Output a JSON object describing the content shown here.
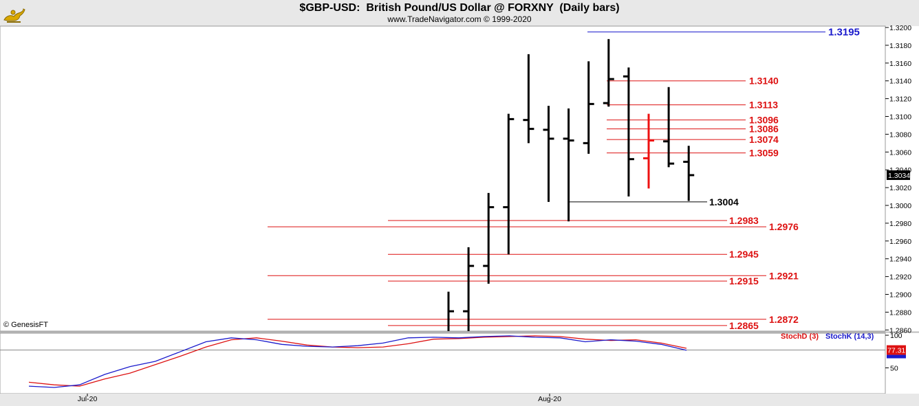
{
  "header": {
    "title": "$GBP-USD:  British Pound/US Dollar @ FORXNY  (Daily bars)",
    "subtitle": "www.TradeNavigator.com © 1999-2020",
    "logo_icon": "genie-lamp-icon"
  },
  "copyright": "© GenesisFT",
  "colors": {
    "background": "#ffffff",
    "bars": "#000000",
    "highlight_bar": "#ee1111",
    "support_resistance": "#dd1111",
    "top_line": "#1a1acc",
    "stoch_d": "#dd1111",
    "stoch_k": "#1a1acc"
  },
  "chart_data": [
    {
      "type": "ohlc",
      "title": "$GBP-USD:  British Pound/US Dollar @ FORXNY  (Daily bars)",
      "ylim": [
        1.2855,
        1.3215
      ],
      "y_ticks": [
        "1.3200",
        "1.3180",
        "1.3160",
        "1.3140",
        "1.3120",
        "1.3100",
        "1.3080",
        "1.3060",
        "1.3040",
        "1.3020",
        "1.3000",
        "1.2980",
        "1.2960",
        "1.2940",
        "1.2920",
        "1.2900",
        "1.2880",
        "1.2860"
      ],
      "last_price": "1.3034",
      "bars": [
        {
          "o": 1.2855,
          "h": 1.2903,
          "l": 1.2855,
          "c": 1.2881
        },
        {
          "o": 1.2881,
          "h": 1.2953,
          "l": 1.2855,
          "c": 1.2932
        },
        {
          "o": 1.2932,
          "h": 1.3014,
          "l": 1.2912,
          "c": 1.2998
        },
        {
          "o": 1.2998,
          "h": 1.3103,
          "l": 1.2945,
          "c": 1.3097
        },
        {
          "o": 1.3096,
          "h": 1.317,
          "l": 1.307,
          "c": 1.3086
        },
        {
          "o": 1.3085,
          "h": 1.3112,
          "l": 1.3004,
          "c": 1.3075
        },
        {
          "o": 1.3075,
          "h": 1.3109,
          "l": 1.2982,
          "c": 1.3073
        },
        {
          "o": 1.307,
          "h": 1.3162,
          "l": 1.3058,
          "c": 1.3114
        },
        {
          "o": 1.3115,
          "h": 1.3187,
          "l": 1.3111,
          "c": 1.3142
        },
        {
          "o": 1.3145,
          "h": 1.3155,
          "l": 1.301,
          "c": 1.3052
        },
        {
          "o": 1.3053,
          "h": 1.3103,
          "l": 1.3019,
          "c": 1.3073,
          "highlight": true
        },
        {
          "o": 1.3072,
          "h": 1.3133,
          "l": 1.3043,
          "c": 1.3047
        },
        {
          "o": 1.3049,
          "h": 1.3067,
          "l": 1.3005,
          "c": 1.3034
        }
      ],
      "levels": [
        {
          "label": "1.3195",
          "value": 1.3195,
          "color": "blue",
          "label_side": "right"
        },
        {
          "label": "1.3140",
          "value": 1.314,
          "color": "red",
          "label_side": "right"
        },
        {
          "label": "1.3113",
          "value": 1.3113,
          "color": "red",
          "label_side": "right"
        },
        {
          "label": "1.3096",
          "value": 1.3096,
          "color": "red",
          "label_side": "right"
        },
        {
          "label": "1.3086",
          "value": 1.3086,
          "color": "red",
          "label_side": "right"
        },
        {
          "label": "1.3074",
          "value": 1.3074,
          "color": "red",
          "label_side": "right"
        },
        {
          "label": "1.3059",
          "value": 1.3059,
          "color": "red",
          "label_side": "right"
        },
        {
          "label": "1.3004",
          "value": 1.3004,
          "color": "black",
          "label_side": "right"
        },
        {
          "label": "1.2983",
          "value": 1.2983,
          "color": "red",
          "label_side": "left"
        },
        {
          "label": "1.2976",
          "value": 1.2976,
          "color": "red",
          "label_side": "far"
        },
        {
          "label": "1.2945",
          "value": 1.2945,
          "color": "red",
          "label_side": "left"
        },
        {
          "label": "1.2921",
          "value": 1.2921,
          "color": "red",
          "label_side": "far"
        },
        {
          "label": "1.2915",
          "value": 1.2915,
          "color": "red",
          "label_side": "left"
        },
        {
          "label": "1.2872",
          "value": 1.2872,
          "color": "red",
          "label_side": "far"
        },
        {
          "label": "1.2865",
          "value": 1.2865,
          "color": "red",
          "label_side": "left"
        }
      ]
    },
    {
      "type": "line",
      "title": "",
      "series": [
        {
          "name": "StochD (3)",
          "values": [
            28,
            24,
            22,
            33,
            42,
            55,
            68,
            82,
            93,
            96,
            91,
            85,
            82,
            81,
            82,
            87,
            94,
            95,
            97,
            98,
            99,
            98,
            94,
            92,
            93,
            88,
            80
          ]
        },
        {
          "name": "StochK (14,3)",
          "values": [
            22,
            20,
            24,
            40,
            52,
            60,
            75,
            90,
            96,
            93,
            86,
            83,
            82,
            84,
            88,
            96,
            97,
            96,
            98,
            99,
            97,
            96,
            90,
            93,
            91,
            86,
            77
          ]
        }
      ],
      "ylim": [
        0,
        100
      ],
      "y_ticks": [
        "100",
        "50"
      ],
      "reference_line": 77.31,
      "last_value": "77.31",
      "x_labels": [
        "Jul-20",
        "Aug-20"
      ]
    }
  ]
}
